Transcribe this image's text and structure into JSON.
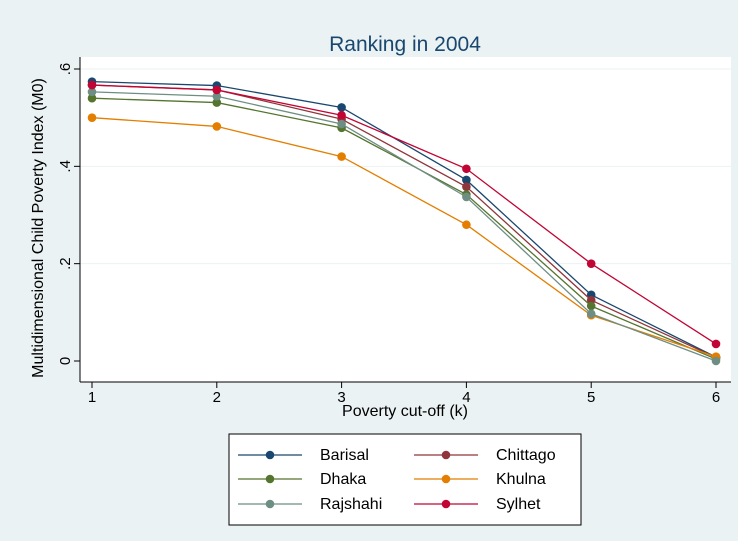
{
  "chart_data": {
    "type": "line",
    "title": "Ranking in 2004",
    "xlabel": "Poverty cut-off (k)",
    "ylabel": "Multidimensional Child Poverty Index (M0)",
    "x": [
      1,
      2,
      3,
      4,
      5,
      6
    ],
    "x_ticks": [
      "1",
      "2",
      "3",
      "4",
      "5",
      "6"
    ],
    "y_ticks": [
      {
        "value": 0,
        "label": "0"
      },
      {
        "value": 0.2,
        "label": ".2"
      },
      {
        "value": 0.4,
        "label": ".4"
      },
      {
        "value": 0.6,
        "label": ".6"
      }
    ],
    "xlim": [
      1,
      6
    ],
    "ylim": [
      0,
      0.6
    ],
    "grid": true,
    "legend_position": "bottom",
    "series": [
      {
        "name": "Barisal",
        "color": "#1a476f",
        "values": [
          0.574,
          0.566,
          0.521,
          0.372,
          0.136,
          0.008
        ]
      },
      {
        "name": "Chittago",
        "color": "#90353b",
        "values": [
          0.567,
          0.557,
          0.497,
          0.358,
          0.125,
          0.007
        ]
      },
      {
        "name": "Dhaka",
        "color": "#55752f",
        "values": [
          0.54,
          0.531,
          0.479,
          0.342,
          0.113,
          0.004
        ]
      },
      {
        "name": "Khulna",
        "color": "#e37e00",
        "values": [
          0.5,
          0.482,
          0.42,
          0.28,
          0.094,
          0.009
        ]
      },
      {
        "name": "Rajshahi",
        "color": "#6e8e84",
        "values": [
          0.553,
          0.544,
          0.487,
          0.337,
          0.097,
          0.0
        ]
      },
      {
        "name": "Sylhet",
        "color": "#c10534",
        "values": [
          0.567,
          0.557,
          0.505,
          0.395,
          0.2,
          0.035
        ]
      }
    ]
  }
}
